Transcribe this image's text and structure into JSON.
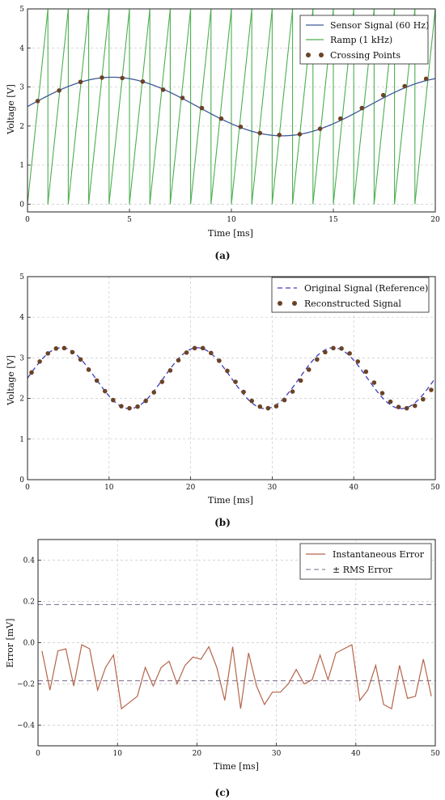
{
  "chart_data": [
    {
      "panel": "a",
      "caption": "(a)",
      "type": "line",
      "xlabel": "Time [ms]",
      "ylabel": "Voltage [V]",
      "xlim": [
        0,
        20
      ],
      "ylim": [
        -0.2,
        5
      ],
      "xticks": [
        "0",
        "5",
        "10",
        "15",
        "20"
      ],
      "yticks": [
        "0",
        "1",
        "2",
        "3",
        "4",
        "5"
      ],
      "grid": true,
      "legend_position": "top-right",
      "series": [
        {
          "name": "Sensor Signal (60 Hz)",
          "kind": "sine",
          "offset": 2.5,
          "amplitude": 0.75,
          "frequency_hz": 60,
          "color": "#3d5a99"
        },
        {
          "name": "Ramp (1 kHz)",
          "kind": "sawtooth",
          "min": 0,
          "max": 5,
          "frequency_hz": 1000,
          "color": "#4caf50"
        },
        {
          "name": "Crossing Points",
          "kind": "points",
          "color": "#6b4326",
          "x": [
            0.5,
            1.55,
            2.6,
            3.65,
            4.65,
            5.65,
            6.65,
            7.6,
            8.55,
            9.5,
            10.45,
            11.4,
            12.35,
            13.35,
            14.35,
            15.35,
            16.4,
            17.45,
            18.5,
            19.55
          ],
          "y": [
            2.64,
            2.91,
            3.13,
            3.24,
            3.23,
            3.14,
            2.93,
            2.72,
            2.46,
            2.19,
            1.98,
            1.82,
            1.77,
            1.79,
            1.93,
            2.19,
            2.46,
            2.79,
            3.02,
            3.21
          ]
        }
      ]
    },
    {
      "panel": "b",
      "caption": "(b)",
      "type": "line",
      "xlabel": "Time [ms]",
      "ylabel": "Voltage [V]",
      "xlim": [
        0,
        50
      ],
      "ylim": [
        0,
        5
      ],
      "xticks": [
        "0",
        "10",
        "20",
        "30",
        "40",
        "50"
      ],
      "yticks": [
        "0",
        "1",
        "2",
        "3",
        "4",
        "5"
      ],
      "grid": true,
      "legend_position": "top-right",
      "series": [
        {
          "name": "Original Signal (Reference)",
          "kind": "sine",
          "offset": 2.5,
          "amplitude": 0.75,
          "frequency_hz": 60,
          "color": "#3d3dbf"
        },
        {
          "name": "Reconstructed Signal",
          "kind": "points",
          "color": "#6b4326",
          "x": [
            0.5,
            1.5,
            2.5,
            3.5,
            4.5,
            5.5,
            6.5,
            7.5,
            8.5,
            9.5,
            10.5,
            11.5,
            12.5,
            13.5,
            14.5,
            15.5,
            16.5,
            17.5,
            18.5,
            19.5,
            20.5,
            21.5,
            22.5,
            23.5,
            24.5,
            25.5,
            26.5,
            27.5,
            28.5,
            29.5,
            30.5,
            31.5,
            32.5,
            33.5,
            34.5,
            35.5,
            36.5,
            37.5,
            38.5,
            39.5,
            40.5,
            41.5,
            42.5,
            43.5,
            44.5,
            45.5,
            46.5,
            47.5,
            48.5,
            49.5
          ],
          "y": [
            2.64,
            2.91,
            3.11,
            3.23,
            3.24,
            3.14,
            2.96,
            2.71,
            2.44,
            2.18,
            1.96,
            1.81,
            1.76,
            1.8,
            1.94,
            2.15,
            2.41,
            2.69,
            2.94,
            3.13,
            3.24,
            3.24,
            3.12,
            2.93,
            2.68,
            2.41,
            2.16,
            1.94,
            1.8,
            1.76,
            1.81,
            1.96,
            2.17,
            2.44,
            2.71,
            2.96,
            3.14,
            3.24,
            3.23,
            3.11,
            2.91,
            2.66,
            2.39,
            2.13,
            1.92,
            1.79,
            1.76,
            1.82,
            1.98,
            2.21
          ]
        }
      ]
    },
    {
      "panel": "c",
      "caption": "(c)",
      "type": "line",
      "xlabel": "Time [ms]",
      "ylabel": "Error [mV]",
      "xlim": [
        0,
        50
      ],
      "ylim": [
        -0.5,
        0.5
      ],
      "xticks": [
        "0",
        "10",
        "20",
        "30",
        "40",
        "50"
      ],
      "yticks": [
        "0.4",
        "0.2",
        "0.0",
        "−0.2",
        "−0.4"
      ],
      "ytick_values": [
        0.4,
        0.2,
        0.0,
        -0.2,
        -0.4
      ],
      "grid": true,
      "legend_position": "top-right",
      "series": [
        {
          "name": "Instantaneous Error",
          "color": "#b5654a",
          "x": [
            0.5,
            1.5,
            2.5,
            3.5,
            4.5,
            5.5,
            6.5,
            7.5,
            8.5,
            9.5,
            10.5,
            11.5,
            12.5,
            13.5,
            14.5,
            15.5,
            16.5,
            17.5,
            18.5,
            19.5,
            20.5,
            21.5,
            22.5,
            23.5,
            24.5,
            25.5,
            26.5,
            27.5,
            28.5,
            29.5,
            30.5,
            31.5,
            32.5,
            33.5,
            34.5,
            35.5,
            36.5,
            37.5,
            38.5,
            39.5,
            40.5,
            41.5,
            42.5,
            43.5,
            44.5,
            45.5,
            46.5,
            47.5,
            48.5,
            49.5
          ],
          "y": [
            -0.04,
            -0.23,
            -0.04,
            -0.03,
            -0.21,
            -0.01,
            -0.03,
            -0.23,
            -0.12,
            -0.06,
            -0.32,
            -0.29,
            -0.26,
            -0.12,
            -0.21,
            -0.12,
            -0.09,
            -0.2,
            -0.11,
            -0.07,
            -0.08,
            -0.02,
            -0.12,
            -0.28,
            -0.02,
            -0.32,
            -0.05,
            -0.21,
            -0.3,
            -0.24,
            -0.24,
            -0.2,
            -0.13,
            -0.2,
            -0.18,
            -0.06,
            -0.18,
            -0.05,
            -0.03,
            -0.01,
            -0.28,
            -0.23,
            -0.11,
            -0.3,
            -0.32,
            -0.11,
            -0.27,
            -0.26,
            -0.08,
            -0.26
          ]
        },
        {
          "name": "± RMS Error",
          "kind": "hlines",
          "values": [
            0.185,
            -0.185
          ],
          "color": "#7a6a8a"
        }
      ]
    }
  ]
}
